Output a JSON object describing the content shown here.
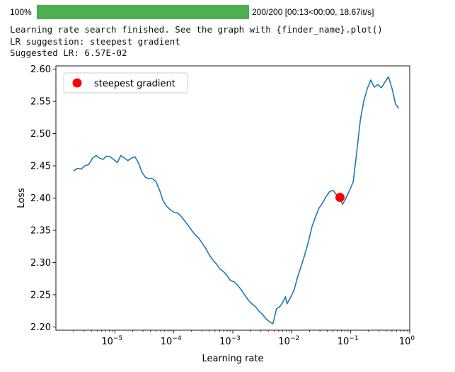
{
  "progress": {
    "percent_label": "100%",
    "fraction": 1.0,
    "stats": "200/200 [00:13<00:00, 18.67it/s]",
    "color": "#4caf50"
  },
  "log_lines": [
    "Learning rate search finished. See the graph with {finder_name}.plot()",
    "LR suggestion: steepest gradient",
    "Suggested LR: 6.57E-02"
  ],
  "chart_data": {
    "type": "line",
    "xlabel": "Learning rate",
    "ylabel": "Loss",
    "xscale": "log",
    "xlim": [
      1e-06,
      1
    ],
    "ylim": [
      2.195,
      2.605
    ],
    "x_ticks": [
      {
        "value": 1e-05,
        "base": "10",
        "exp": "−5"
      },
      {
        "value": 0.0001,
        "base": "10",
        "exp": "−4"
      },
      {
        "value": 0.001,
        "base": "10",
        "exp": "−3"
      },
      {
        "value": 0.01,
        "base": "10",
        "exp": "−2"
      },
      {
        "value": 0.1,
        "base": "10",
        "exp": "−1"
      },
      {
        "value": 1,
        "base": "10",
        "exp": "0"
      }
    ],
    "y_ticks": [
      "2.20",
      "2.25",
      "2.30",
      "2.35",
      "2.40",
      "2.45",
      "2.50",
      "2.55",
      "2.60"
    ],
    "grid": false,
    "legend_position": "top-left",
    "series": [
      {
        "color": "#1f77b4",
        "points": [
          [
            2e-06,
            2.442
          ],
          [
            2.3e-06,
            2.446
          ],
          [
            2.7e-06,
            2.445
          ],
          [
            3.1e-06,
            2.45
          ],
          [
            3.6e-06,
            2.452
          ],
          [
            4.2e-06,
            2.462
          ],
          [
            4.8e-06,
            2.466
          ],
          [
            5.5e-06,
            2.462
          ],
          [
            6.3e-06,
            2.46
          ],
          [
            7.2e-06,
            2.465
          ],
          [
            8.3e-06,
            2.464
          ],
          [
            9.5e-06,
            2.46
          ],
          [
            1.1e-05,
            2.455
          ],
          [
            1.26e-05,
            2.466
          ],
          [
            1.45e-05,
            2.462
          ],
          [
            1.66e-05,
            2.458
          ],
          [
            1.91e-05,
            2.462
          ],
          [
            2.19e-05,
            2.464
          ],
          [
            2.51e-05,
            2.455
          ],
          [
            2.88e-05,
            2.44
          ],
          [
            3.31e-05,
            2.432
          ],
          [
            3.8e-05,
            2.43
          ],
          [
            4.37e-05,
            2.43
          ],
          [
            5.01e-05,
            2.425
          ],
          [
            5.75e-05,
            2.412
          ],
          [
            6.61e-05,
            2.395
          ],
          [
            7.59e-05,
            2.387
          ],
          [
            8.71e-05,
            2.382
          ],
          [
            0.0001,
            2.378
          ],
          [
            0.000115,
            2.377
          ],
          [
            0.000132,
            2.372
          ],
          [
            0.000151,
            2.365
          ],
          [
            0.000174,
            2.358
          ],
          [
            0.0002,
            2.35
          ],
          [
            0.000229,
            2.343
          ],
          [
            0.000263,
            2.338
          ],
          [
            0.000302,
            2.33
          ],
          [
            0.000347,
            2.322
          ],
          [
            0.000398,
            2.312
          ],
          [
            0.000457,
            2.304
          ],
          [
            0.000525,
            2.298
          ],
          [
            0.000603,
            2.29
          ],
          [
            0.000692,
            2.286
          ],
          [
            0.000794,
            2.28
          ],
          [
            0.000912,
            2.272
          ],
          [
            0.00105,
            2.27
          ],
          [
            0.0012,
            2.265
          ],
          [
            0.00138,
            2.258
          ],
          [
            0.00158,
            2.25
          ],
          [
            0.00182,
            2.242
          ],
          [
            0.00209,
            2.236
          ],
          [
            0.0024,
            2.232
          ],
          [
            0.00275,
            2.225
          ],
          [
            0.00316,
            2.22
          ],
          [
            0.00363,
            2.213
          ],
          [
            0.00417,
            2.208
          ],
          [
            0.00479,
            2.205
          ],
          [
            0.0055,
            2.228
          ],
          [
            0.00631,
            2.232
          ],
          [
            0.00724,
            2.24
          ],
          [
            0.0078,
            2.247
          ],
          [
            0.00832,
            2.236
          ],
          [
            0.00955,
            2.246
          ],
          [
            0.011,
            2.258
          ],
          [
            0.0126,
            2.278
          ],
          [
            0.0145,
            2.295
          ],
          [
            0.0166,
            2.312
          ],
          [
            0.0191,
            2.332
          ],
          [
            0.0219,
            2.355
          ],
          [
            0.0251,
            2.37
          ],
          [
            0.0288,
            2.384
          ],
          [
            0.0331,
            2.392
          ],
          [
            0.038,
            2.402
          ],
          [
            0.0437,
            2.41
          ],
          [
            0.0501,
            2.412
          ],
          [
            0.0575,
            2.405
          ],
          [
            0.0657,
            2.401
          ],
          [
            0.0724,
            2.39
          ],
          [
            0.0832,
            2.4
          ],
          [
            0.0955,
            2.412
          ],
          [
            0.11,
            2.425
          ],
          [
            0.126,
            2.47
          ],
          [
            0.145,
            2.52
          ],
          [
            0.166,
            2.55
          ],
          [
            0.191,
            2.57
          ],
          [
            0.219,
            2.583
          ],
          [
            0.251,
            2.572
          ],
          [
            0.288,
            2.576
          ],
          [
            0.331,
            2.571
          ],
          [
            0.38,
            2.58
          ],
          [
            0.437,
            2.588
          ],
          [
            0.501,
            2.57
          ],
          [
            0.575,
            2.546
          ],
          [
            0.65,
            2.539
          ]
        ]
      }
    ],
    "marker": {
      "label": "steepest gradient",
      "x": 0.0657,
      "y": 2.401,
      "color": "#ff0000"
    }
  }
}
